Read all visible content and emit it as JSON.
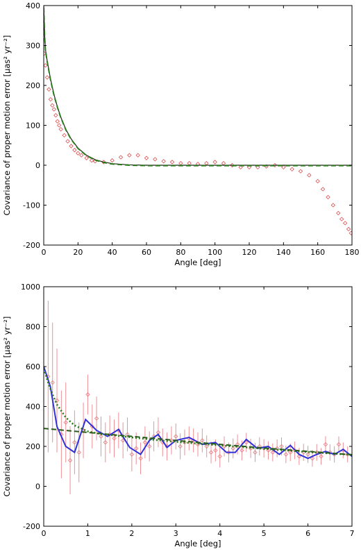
{
  "chart_data": [
    {
      "type": "scatter",
      "xlabel": "Angle [deg]",
      "ylabel": "Covariance of proper motion error [μas² yr⁻²]",
      "xlim": [
        0,
        180
      ],
      "ylim": [
        -200,
        400
      ],
      "xticks": [
        0,
        20,
        40,
        60,
        80,
        100,
        120,
        140,
        160,
        180
      ],
      "yticks": [
        -200,
        -100,
        0,
        100,
        200,
        300,
        400
      ],
      "grid": false,
      "series": [
        {
          "kind": "points",
          "color": "#d62728",
          "marker": "open-diamond",
          "x": [
            0.3,
            1,
            2,
            3,
            4,
            5,
            6,
            7,
            8,
            9,
            10,
            12,
            14,
            16,
            18,
            20,
            22,
            25,
            28,
            30,
            35,
            40,
            45,
            50,
            55,
            60,
            65,
            70,
            75,
            80,
            85,
            90,
            95,
            100,
            105,
            110,
            115,
            120,
            125,
            130,
            135,
            140,
            145,
            150,
            155,
            160,
            163,
            166,
            169,
            172,
            174,
            176,
            178,
            179.5
          ],
          "y": [
            280,
            250,
            220,
            190,
            165,
            150,
            140,
            125,
            110,
            100,
            90,
            75,
            60,
            48,
            38,
            30,
            25,
            18,
            12,
            10,
            8,
            12,
            20,
            25,
            25,
            18,
            15,
            10,
            8,
            5,
            5,
            3,
            5,
            8,
            5,
            0,
            -5,
            -5,
            -5,
            -3,
            0,
            -5,
            -10,
            -15,
            -25,
            -40,
            -60,
            -80,
            -100,
            -120,
            -135,
            -145,
            -160,
            -170
          ]
        },
        {
          "kind": "line",
          "color": "#222222",
          "style": "solid",
          "x": [
            0,
            0.5,
            1,
            2,
            4,
            6,
            8,
            10,
            13,
            16,
            20,
            25,
            30,
            35,
            40,
            50,
            60,
            80,
            100,
            140,
            180
          ],
          "y": [
            400,
            330,
            290,
            262,
            215,
            177,
            146,
            120,
            89,
            66,
            43,
            25,
            14,
            8,
            4,
            1,
            0,
            0,
            0,
            0,
            0
          ]
        },
        {
          "kind": "line",
          "color": "#2a7a1a",
          "style": "dashed",
          "x": [
            0,
            0.5,
            1,
            2,
            4,
            6,
            8,
            10,
            13,
            16,
            20,
            25,
            30,
            35,
            40,
            50,
            60,
            80,
            100,
            140,
            180
          ],
          "y": [
            395,
            325,
            288,
            260,
            213,
            175,
            145,
            119,
            88,
            65,
            42,
            24,
            13,
            7,
            3,
            0,
            -1,
            -1,
            -1,
            -1,
            -1
          ]
        }
      ]
    },
    {
      "type": "line",
      "xlabel": "Angle [deg]",
      "ylabel": "Covariance of proper motion error [μas² yr⁻²]",
      "xlim": [
        0,
        7
      ],
      "ylim": [
        -200,
        1000
      ],
      "xticks": [
        0,
        1,
        2,
        3,
        4,
        5,
        6,
        7
      ],
      "yticks": [
        -200,
        0,
        200,
        400,
        600,
        800,
        1000
      ],
      "grid": false,
      "series": [
        {
          "kind": "errorbars",
          "color": "#e8747c",
          "marker": "open-diamond",
          "x": [
            0.1,
            0.2,
            0.3,
            0.4,
            0.5,
            0.6,
            0.7,
            0.8,
            0.9,
            1.0,
            1.1,
            1.2,
            1.3,
            1.4,
            1.5,
            1.6,
            1.7,
            1.8,
            1.9,
            2.0,
            2.1,
            2.2,
            2.3,
            2.4,
            2.5,
            2.6,
            2.7,
            2.8,
            2.9,
            3.0,
            3.1,
            3.2,
            3.3,
            3.4,
            3.5,
            3.6,
            3.7,
            3.8,
            3.9,
            4.0,
            4.1,
            4.2,
            4.3,
            4.4,
            4.5,
            4.6,
            4.7,
            4.8,
            4.9,
            5.0,
            5.1,
            5.2,
            5.3,
            5.4,
            5.5,
            5.6,
            5.7,
            5.8,
            5.9,
            6.0,
            6.1,
            6.2,
            6.3,
            6.4,
            6.5,
            6.6,
            6.7,
            6.8,
            6.9
          ],
          "y": [
            550,
            520,
            430,
            260,
            320,
            130,
            220,
            170,
            280,
            460,
            300,
            340,
            250,
            220,
            260,
            240,
            280,
            230,
            260,
            160,
            190,
            140,
            220,
            200,
            250,
            270,
            220,
            200,
            230,
            250,
            200,
            220,
            240,
            230,
            210,
            230,
            200,
            170,
            180,
            150,
            200,
            170,
            190,
            210,
            180,
            220,
            190,
            170,
            200,
            190,
            180,
            170,
            190,
            200,
            160,
            170,
            180,
            150,
            170,
            160,
            140,
            170,
            150,
            210,
            170,
            160,
            210,
            180,
            160
          ],
          "err": [
            380,
            300,
            260,
            220,
            200,
            170,
            160,
            150,
            140,
            100,
            110,
            110,
            100,
            100,
            95,
            95,
            90,
            90,
            85,
            85,
            80,
            80,
            80,
            75,
            75,
            75,
            70,
            70,
            70,
            65,
            65,
            65,
            60,
            60,
            60,
            60,
            55,
            55,
            55,
            55,
            50,
            50,
            50,
            50,
            50,
            48,
            48,
            48,
            46,
            46,
            46,
            45,
            45,
            45,
            44,
            44,
            44,
            43,
            43,
            43,
            42,
            42,
            42,
            41,
            41,
            41,
            40,
            40,
            40
          ]
        },
        {
          "kind": "line",
          "color": "#3030d8",
          "style": "solid",
          "x": [
            0.0,
            0.15,
            0.3,
            0.5,
            0.7,
            0.95,
            1.2,
            1.45,
            1.7,
            1.95,
            2.2,
            2.4,
            2.6,
            2.8,
            3.0,
            3.3,
            3.6,
            3.9,
            4.15,
            4.35,
            4.6,
            4.85,
            5.1,
            5.35,
            5.6,
            5.8,
            6.0,
            6.2,
            6.4,
            6.6,
            6.8,
            7.0
          ],
          "y": [
            600,
            500,
            300,
            200,
            170,
            335,
            280,
            250,
            285,
            195,
            160,
            230,
            260,
            195,
            230,
            245,
            210,
            220,
            170,
            170,
            235,
            190,
            200,
            160,
            205,
            160,
            140,
            160,
            175,
            160,
            185,
            150
          ]
        },
        {
          "kind": "line",
          "color": "#2a7a1a",
          "style": "dotted",
          "x": [
            0.0,
            0.1,
            0.2,
            0.3,
            0.5,
            0.7,
            1.0,
            1.3,
            1.6,
            2.0,
            2.5,
            3.0,
            4.0,
            5.0,
            6.0,
            7.0
          ],
          "y": [
            590,
            520,
            460,
            410,
            345,
            305,
            275,
            262,
            255,
            245,
            233,
            223,
            205,
            188,
            172,
            158
          ]
        },
        {
          "kind": "line",
          "color": "#2a5a1a",
          "style": "dashed",
          "x": [
            0,
            1,
            2,
            3,
            4,
            5,
            6,
            7
          ],
          "y": [
            290,
            270,
            250,
            230,
            210,
            192,
            175,
            158
          ]
        }
      ]
    }
  ]
}
